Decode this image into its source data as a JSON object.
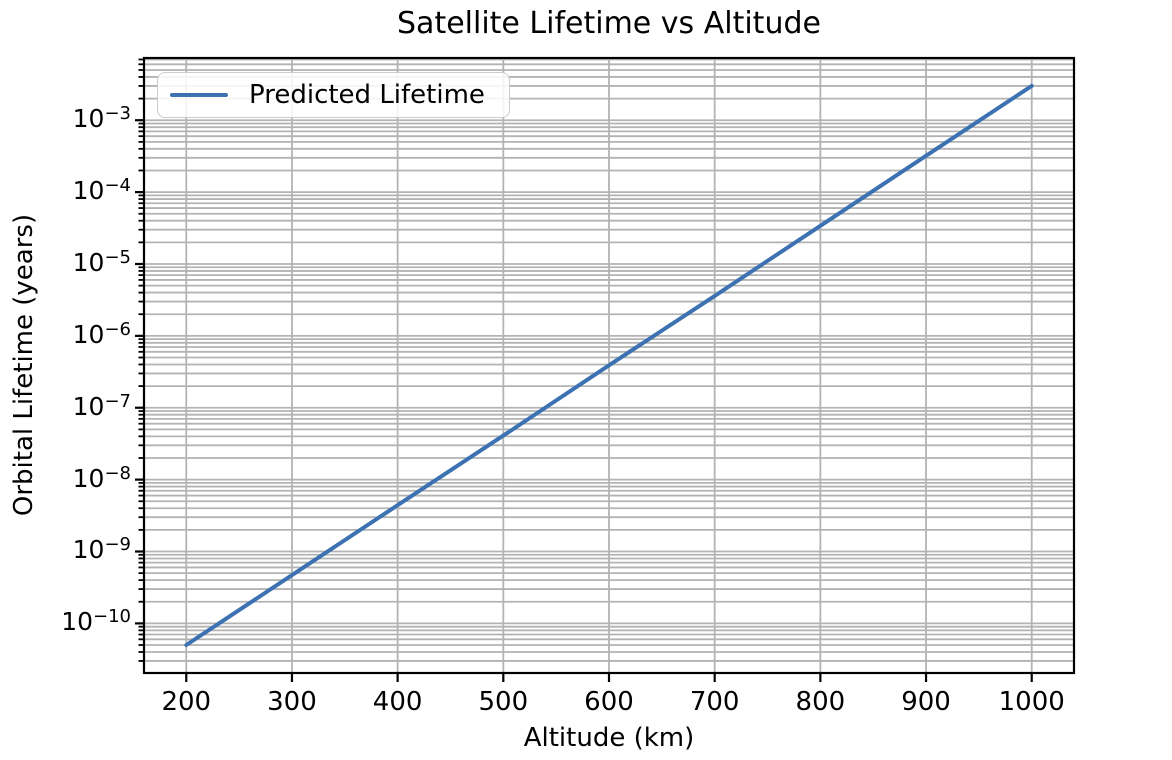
{
  "chart_data": {
    "type": "line",
    "title": "Satellite Lifetime vs Altitude",
    "xlabel": "Altitude (km)",
    "ylabel": "Orbital Lifetime (years)",
    "x": [
      200,
      300,
      400,
      500,
      600,
      700,
      800,
      900,
      1000
    ],
    "series": [
      {
        "name": "Predicted Lifetime",
        "values": [
          5e-11,
          4.7e-10,
          4.4e-09,
          4.1e-08,
          3.9e-07,
          3.6e-06,
          3.4e-05,
          0.00032,
          0.003
        ]
      }
    ],
    "yscale": "log",
    "xlim": [
      160,
      1040
    ],
    "ylim": [
      2.04e-11,
      0.00734
    ],
    "x_ticks": [
      200,
      300,
      400,
      500,
      600,
      700,
      800,
      900,
      1000
    ],
    "y_tick_exponents": [
      -3,
      -4,
      -5,
      -6,
      -7,
      -8,
      -9,
      -10
    ],
    "grid": "both-major-and-minor",
    "legend_position": "upper-left",
    "colors": {
      "line": "#3d72b2",
      "grid": "#b3b3b3",
      "spine": "#000000",
      "text": "#000000",
      "background": "#ffffff",
      "legend_border": "#cccccc"
    }
  }
}
